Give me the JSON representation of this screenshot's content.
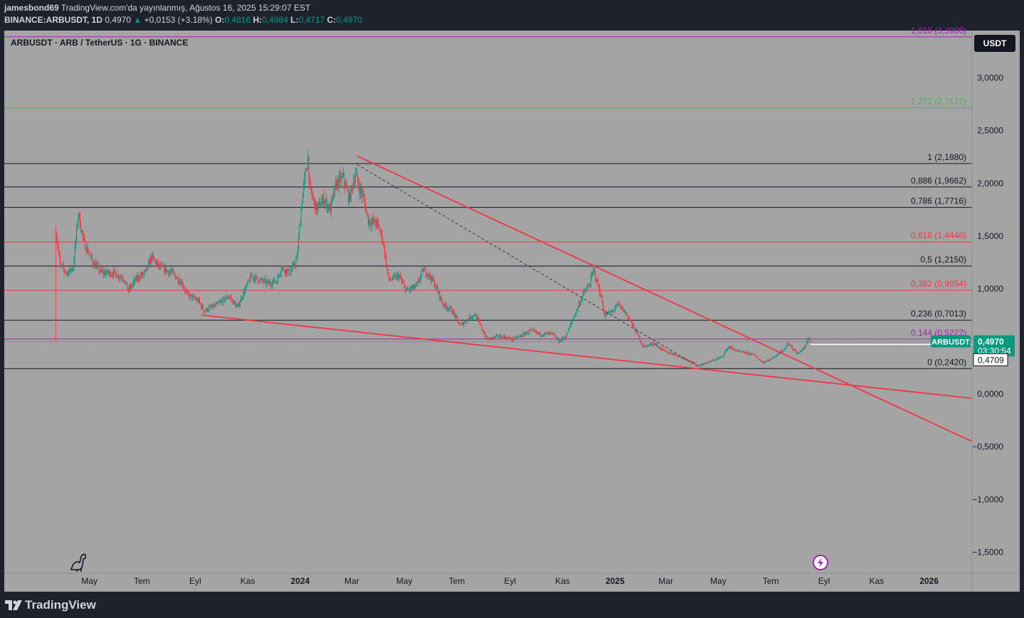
{
  "header": {
    "publisher": "jamesbond69",
    "published_line": "TradingView.com'da yayınlanmış, Ağustos 16, 2025 15:29:07 EST",
    "symbol_line": "BINANCE:ARBUSDT, 1D",
    "last": "0,4970",
    "change": "+0,0153 (+3.18%)",
    "open_label": "O:",
    "open": "0,4816",
    "high_label": "H:",
    "high": "0,4984",
    "low_label": "L:",
    "low": "0,4717",
    "close_label": "C:",
    "close": "0,4970"
  },
  "toolbar": {
    "currency_button": "USDT"
  },
  "footer": {
    "brand": "TradingView"
  },
  "colors": {
    "background": "#1e222d",
    "chart_area": "#a4a4a4",
    "up_candle": "#089981",
    "down_candle": "#f23645",
    "trendline": "#f23645",
    "fib_purple": "#9c27b0",
    "fib_red": "#f23645",
    "fib_black": "#131722",
    "fib_green": "#4caf50"
  },
  "icons": [
    "up-triangle-icon",
    "dino-icon",
    "lightning-icon",
    "tradingview-logo-icon"
  ],
  "chart_data": {
    "type": "candlestick",
    "title": "ARBUSDT · ARB / TetherUS · 1G · BINANCE",
    "ylim": [
      -1.7,
      3.45
    ],
    "y_ticks": [
      {
        "value": 3.0,
        "label": "3,0000"
      },
      {
        "value": 2.5,
        "label": "2,5000"
      },
      {
        "value": 2.0,
        "label": "2,0000"
      },
      {
        "value": 1.5,
        "label": "1,5000"
      },
      {
        "value": 1.0,
        "label": "1,0000"
      },
      {
        "value": 0.0,
        "label": "0,0000"
      },
      {
        "value": -0.5,
        "label": "−0,5000"
      },
      {
        "value": -1.0,
        "label": "−1,0000"
      },
      {
        "value": -1.5,
        "label": "−1,5000"
      }
    ],
    "x_ticks": [
      {
        "date": "2023-05-01",
        "label": "May",
        "bold": false
      },
      {
        "date": "2023-07-01",
        "label": "Tem",
        "bold": false
      },
      {
        "date": "2023-09-01",
        "label": "Eyl",
        "bold": false
      },
      {
        "date": "2023-11-01",
        "label": "Kas",
        "bold": false
      },
      {
        "date": "2024-01-01",
        "label": "2024",
        "bold": true
      },
      {
        "date": "2024-03-01",
        "label": "Mar",
        "bold": false
      },
      {
        "date": "2024-05-01",
        "label": "May",
        "bold": false
      },
      {
        "date": "2024-07-01",
        "label": "Tem",
        "bold": false
      },
      {
        "date": "2024-09-01",
        "label": "Eyl",
        "bold": false
      },
      {
        "date": "2024-11-01",
        "label": "Kas",
        "bold": false
      },
      {
        "date": "2025-01-01",
        "label": "2025",
        "bold": true
      },
      {
        "date": "2025-03-01",
        "label": "Mar",
        "bold": false
      },
      {
        "date": "2025-05-01",
        "label": "May",
        "bold": false
      },
      {
        "date": "2025-07-01",
        "label": "Tem",
        "bold": false
      },
      {
        "date": "2025-09-01",
        "label": "Eyl",
        "bold": false
      },
      {
        "date": "2025-11-01",
        "label": "Kas",
        "bold": false
      },
      {
        "date": "2026-01-01",
        "label": "2026",
        "bold": true
      }
    ],
    "fib_levels": [
      {
        "value": 3.3906,
        "label": "1,618 (3,3906)",
        "color": "#9c27b0"
      },
      {
        "value": 2.7172,
        "label": "1,272 (2,7172)",
        "color": "#4caf50"
      },
      {
        "value": 2.188,
        "label": "1 (2,1880)",
        "color": "#131722"
      },
      {
        "value": 1.9662,
        "label": "0,886 (1,9662)",
        "color": "#131722"
      },
      {
        "value": 1.7716,
        "label": "0,786 (1,7716)",
        "color": "#131722"
      },
      {
        "value": 1.4446,
        "label": "0,618 (1,4446)",
        "color": "#f23645"
      },
      {
        "value": 1.215,
        "label": "0,5 (1,2150)",
        "color": "#131722"
      },
      {
        "value": 0.9854,
        "label": "0,382 (0,9854)",
        "color": "#f23645"
      },
      {
        "value": 0.7013,
        "label": "0,236 (0,7013)",
        "color": "#131722"
      },
      {
        "value": 0.5222,
        "label": "0,144 (0,5222)",
        "color": "#9c27b0"
      },
      {
        "value": 0.242,
        "label": "0 (0,2420)",
        "color": "#131722"
      }
    ],
    "trendlines": [
      {
        "start": [
          "2024-03-07",
          2.26
        ],
        "end": [
          "2026-02-20",
          -0.45
        ],
        "style": "solid"
      },
      {
        "start": [
          "2023-09-08",
          0.75
        ],
        "end": [
          "2026-02-20",
          -0.04
        ],
        "style": "solid"
      },
      {
        "start": [
          "2024-03-07",
          2.18
        ],
        "end": [
          "2025-04-12",
          0.24
        ],
        "style": "dashed"
      }
    ],
    "price_path": [
      [
        "2023-03-23",
        1.55
      ],
      [
        "2023-03-28",
        1.22
      ],
      [
        "2023-04-05",
        1.15
      ],
      [
        "2023-04-12",
        1.2
      ],
      [
        "2023-04-18",
        1.72
      ],
      [
        "2023-04-24",
        1.45
      ],
      [
        "2023-05-05",
        1.25
      ],
      [
        "2023-05-15",
        1.15
      ],
      [
        "2023-05-28",
        1.15
      ],
      [
        "2023-06-10",
        1.1
      ],
      [
        "2023-06-15",
        0.98
      ],
      [
        "2023-06-25",
        1.1
      ],
      [
        "2023-07-05",
        1.15
      ],
      [
        "2023-07-12",
        1.3
      ],
      [
        "2023-07-22",
        1.2
      ],
      [
        "2023-08-05",
        1.15
      ],
      [
        "2023-08-17",
        1.05
      ],
      [
        "2023-08-22",
        0.95
      ],
      [
        "2023-09-05",
        0.88
      ],
      [
        "2023-09-11",
        0.79
      ],
      [
        "2023-09-25",
        0.84
      ],
      [
        "2023-10-10",
        0.93
      ],
      [
        "2023-10-20",
        0.82
      ],
      [
        "2023-10-25",
        0.92
      ],
      [
        "2023-11-05",
        1.12
      ],
      [
        "2023-11-15",
        1.08
      ],
      [
        "2023-11-25",
        1.05
      ],
      [
        "2023-12-05",
        1.08
      ],
      [
        "2023-12-10",
        1.2
      ],
      [
        "2023-12-20",
        1.15
      ],
      [
        "2023-12-28",
        1.28
      ],
      [
        "2024-01-03",
        1.85
      ],
      [
        "2024-01-10",
        2.25
      ],
      [
        "2024-01-12",
        1.95
      ],
      [
        "2024-01-20",
        1.75
      ],
      [
        "2024-01-28",
        1.85
      ],
      [
        "2024-02-05",
        1.75
      ],
      [
        "2024-02-12",
        2.0
      ],
      [
        "2024-02-20",
        2.05
      ],
      [
        "2024-02-27",
        1.85
      ],
      [
        "2024-03-05",
        2.1
      ],
      [
        "2024-03-10",
        1.95
      ],
      [
        "2024-03-15",
        1.85
      ],
      [
        "2024-03-20",
        1.65
      ],
      [
        "2024-03-30",
        1.62
      ],
      [
        "2024-04-05",
        1.5
      ],
      [
        "2024-04-13",
        1.08
      ],
      [
        "2024-04-25",
        1.12
      ],
      [
        "2024-05-03",
        0.98
      ],
      [
        "2024-05-15",
        1.02
      ],
      [
        "2024-05-23",
        1.18
      ],
      [
        "2024-05-28",
        1.15
      ],
      [
        "2024-06-05",
        1.05
      ],
      [
        "2024-06-15",
        0.85
      ],
      [
        "2024-06-25",
        0.8
      ],
      [
        "2024-07-05",
        0.65
      ],
      [
        "2024-07-15",
        0.72
      ],
      [
        "2024-07-22",
        0.76
      ],
      [
        "2024-08-05",
        0.52
      ],
      [
        "2024-08-20",
        0.55
      ],
      [
        "2024-09-05",
        0.52
      ],
      [
        "2024-09-25",
        0.6
      ],
      [
        "2024-10-05",
        0.57
      ],
      [
        "2024-10-20",
        0.57
      ],
      [
        "2024-10-28",
        0.5
      ],
      [
        "2024-11-05",
        0.55
      ],
      [
        "2024-11-15",
        0.75
      ],
      [
        "2024-11-25",
        0.95
      ],
      [
        "2024-12-03",
        1.05
      ],
      [
        "2024-12-07",
        1.18
      ],
      [
        "2024-12-15",
        0.95
      ],
      [
        "2024-12-20",
        0.75
      ],
      [
        "2024-12-28",
        0.78
      ],
      [
        "2025-01-05",
        0.85
      ],
      [
        "2025-01-15",
        0.75
      ],
      [
        "2025-01-25",
        0.6
      ],
      [
        "2025-02-03",
        0.45
      ],
      [
        "2025-02-15",
        0.48
      ],
      [
        "2025-02-28",
        0.4
      ],
      [
        "2025-03-10",
        0.38
      ],
      [
        "2025-03-25",
        0.33
      ],
      [
        "2025-04-07",
        0.27
      ],
      [
        "2025-04-15",
        0.29
      ],
      [
        "2025-04-25",
        0.32
      ],
      [
        "2025-05-05",
        0.35
      ],
      [
        "2025-05-13",
        0.45
      ],
      [
        "2025-05-25",
        0.4
      ],
      [
        "2025-06-10",
        0.38
      ],
      [
        "2025-06-22",
        0.3
      ],
      [
        "2025-07-03",
        0.34
      ],
      [
        "2025-07-15",
        0.42
      ],
      [
        "2025-07-22",
        0.48
      ],
      [
        "2025-08-01",
        0.38
      ],
      [
        "2025-08-10",
        0.45
      ],
      [
        "2025-08-14",
        0.54
      ],
      [
        "2025-08-16",
        0.497
      ]
    ],
    "candle_interval": "1D",
    "launch_wick_low": 0.5,
    "last_price": {
      "value": 0.497,
      "symbol": "ARBUSDT",
      "label": "0,4970",
      "countdown": "03:30:54"
    },
    "crosshair_price": {
      "value": 0.4709,
      "label": "0,4709"
    }
  }
}
